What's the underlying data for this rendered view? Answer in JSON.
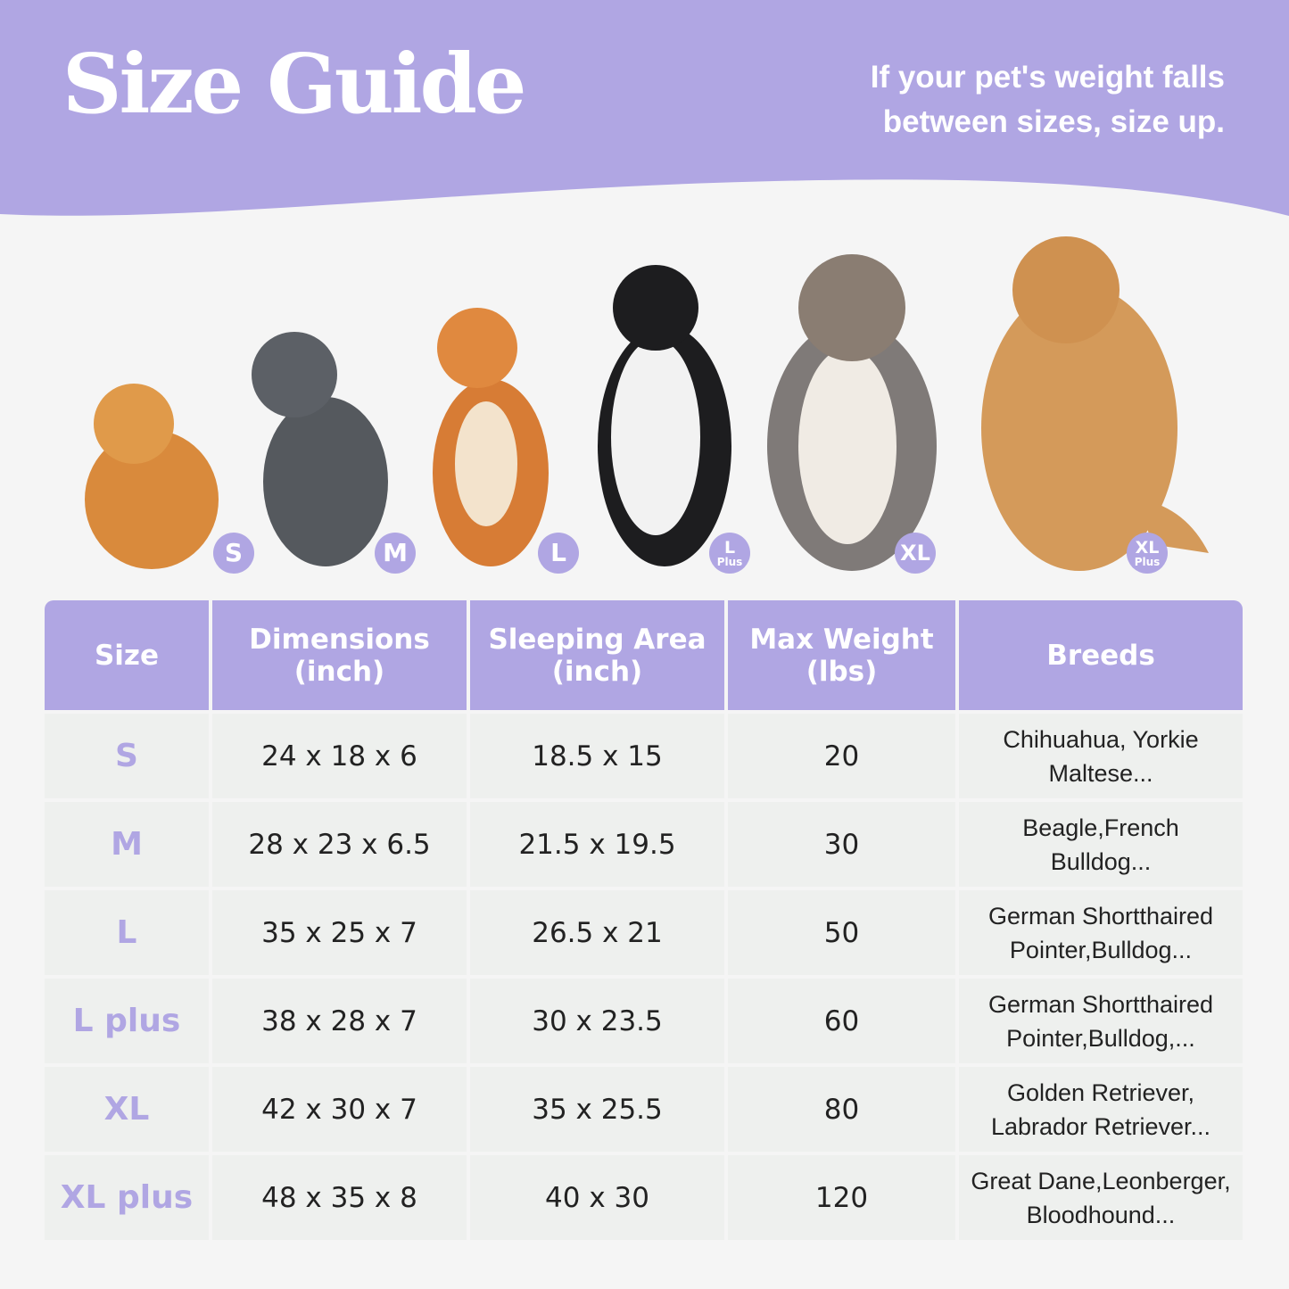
{
  "header": {
    "title": "Size Guide",
    "tip": "If your pet's weight falls\nbetween sizes, size up."
  },
  "colors": {
    "accent": "#b0a6e3",
    "background": "#f5f5f5",
    "cell": "#eef0ee"
  },
  "dogs": [
    {
      "breed_image": "pomeranian",
      "badge": "S",
      "badge_sub": ""
    },
    {
      "breed_image": "french-bulldog",
      "badge": "M",
      "badge_sub": ""
    },
    {
      "breed_image": "shiba-inu",
      "badge": "L",
      "badge_sub": ""
    },
    {
      "breed_image": "border-collie",
      "badge": "L",
      "badge_sub": "Plus"
    },
    {
      "breed_image": "australian-shepherd",
      "badge": "XL",
      "badge_sub": ""
    },
    {
      "breed_image": "golden-retriever",
      "badge": "XL",
      "badge_sub": "Plus"
    }
  ],
  "table": {
    "headers": [
      "Size",
      "Dimensions\n(inch)",
      "Sleeping Area\n(inch)",
      "Max Weight\n(lbs)",
      "Breeds"
    ],
    "rows": [
      [
        "S",
        "24 x 18 x 6",
        "18.5 x 15",
        "20",
        "Chihuahua, Yorkie\nMaltese..."
      ],
      [
        "M",
        "28 x 23 x 6.5",
        "21.5 x 19.5",
        "30",
        "Beagle,French\nBulldog..."
      ],
      [
        "L",
        "35 x 25 x 7",
        "26.5 x 21",
        "50",
        "German Shortthaired\nPointer,Bulldog..."
      ],
      [
        "L plus",
        "38 x 28 x 7",
        "30 x 23.5",
        "60",
        "German Shortthaired\nPointer,Bulldog,..."
      ],
      [
        "XL",
        "42 x 30 x 7",
        "35 x 25.5",
        "80",
        "Golden Retriever,\nLabrador Retriever..."
      ],
      [
        "XL plus",
        "48 x 35 x 8",
        "40 x 30",
        "120",
        "Great Dane,Leonberger,\nBloodhound..."
      ]
    ]
  }
}
